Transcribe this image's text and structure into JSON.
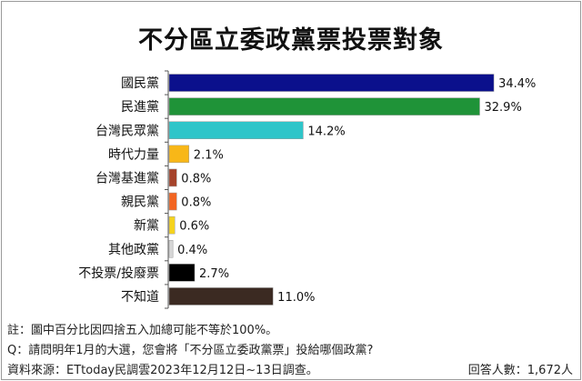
{
  "chart_data": {
    "type": "bar",
    "orientation": "horizontal",
    "title": "不分區立委政黨票投票對象",
    "categories": [
      "國民黨",
      "民進黨",
      "台灣民眾黨",
      "時代力量",
      "台灣基進黨",
      "親民黨",
      "新黨",
      "其他政黨",
      "不投票/投廢票",
      "不知道"
    ],
    "values": [
      34.4,
      32.9,
      14.2,
      2.1,
      0.8,
      0.8,
      0.6,
      0.4,
      2.7,
      11.0
    ],
    "value_labels": [
      "34.4%",
      "32.9%",
      "14.2%",
      "2.1%",
      "0.8%",
      "0.8%",
      "0.6%",
      "0.4%",
      "2.7%",
      "11.0%"
    ],
    "colors": [
      "#0b108c",
      "#1f9338",
      "#2ec5c9",
      "#f8b718",
      "#a5432b",
      "#f26522",
      "#f5d31e",
      "#d6d6d6",
      "#000000",
      "#3b2a22"
    ],
    "xlabel": "",
    "ylabel": "",
    "xlim": [
      0,
      36
    ],
    "grid": false,
    "legend": "none"
  },
  "notes": {
    "note": "註：圖中百分比因四捨五入加總可能不等於100%。",
    "question": "Q：請問明年1月的大選，您會將「不分區立委政黨票」投給哪個政黨?",
    "source": "資料來源：ETtoday民調雲2023年12月12日~13日調查。",
    "respondents": "回答人數：1,672人"
  }
}
